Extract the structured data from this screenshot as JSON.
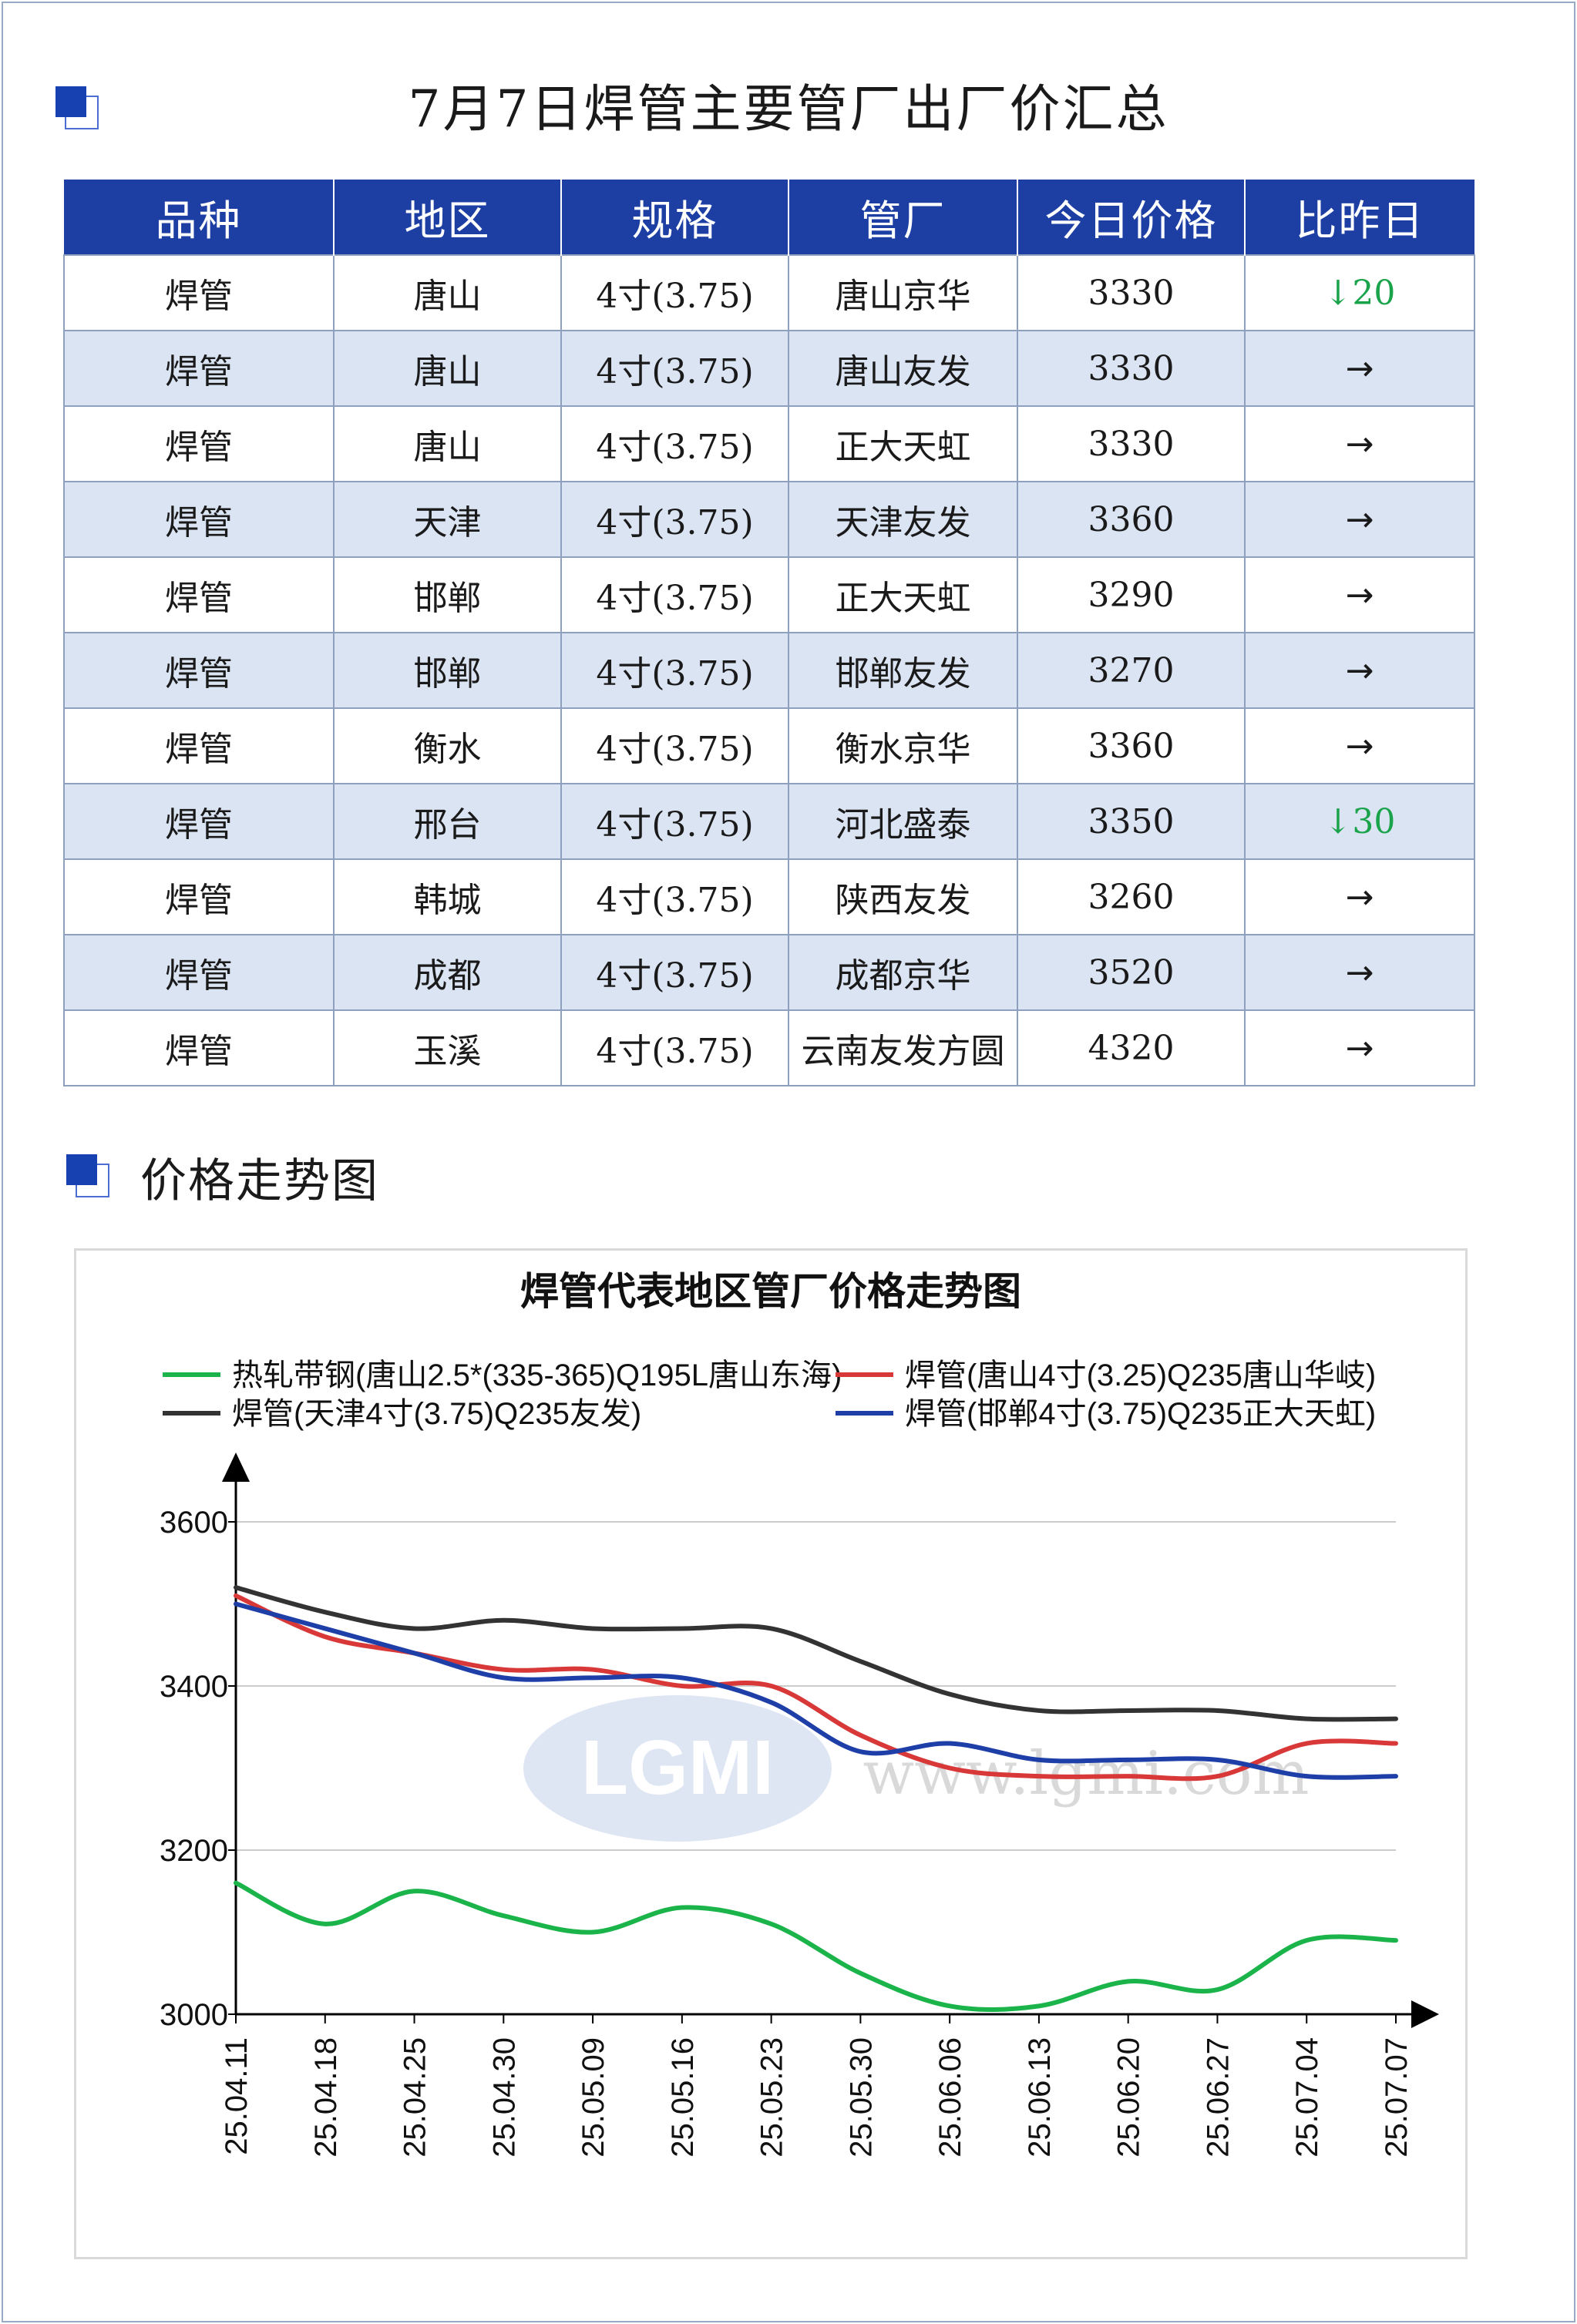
{
  "header": {
    "title": "7月7日焊管主要管厂出厂价汇总"
  },
  "table": {
    "columns": [
      "品种",
      "地区",
      "规格",
      "管厂",
      "今日价格",
      "比昨日"
    ],
    "rows": [
      {
        "variety": "焊管",
        "region": "唐山",
        "spec": "4寸(3.75)",
        "mill": "唐山京华",
        "price": "3330",
        "change": "↓20",
        "trend": "down"
      },
      {
        "variety": "焊管",
        "region": "唐山",
        "spec": "4寸(3.75)",
        "mill": "唐山友发",
        "price": "3330",
        "change": "→",
        "trend": "flat"
      },
      {
        "variety": "焊管",
        "region": "唐山",
        "spec": "4寸(3.75)",
        "mill": "正大天虹",
        "price": "3330",
        "change": "→",
        "trend": "flat"
      },
      {
        "variety": "焊管",
        "region": "天津",
        "spec": "4寸(3.75)",
        "mill": "天津友发",
        "price": "3360",
        "change": "→",
        "trend": "flat"
      },
      {
        "variety": "焊管",
        "region": "邯郸",
        "spec": "4寸(3.75)",
        "mill": "正大天虹",
        "price": "3290",
        "change": "→",
        "trend": "flat"
      },
      {
        "variety": "焊管",
        "region": "邯郸",
        "spec": "4寸(3.75)",
        "mill": "邯郸友发",
        "price": "3270",
        "change": "→",
        "trend": "flat"
      },
      {
        "variety": "焊管",
        "region": "衡水",
        "spec": "4寸(3.75)",
        "mill": "衡水京华",
        "price": "3360",
        "change": "→",
        "trend": "flat"
      },
      {
        "variety": "焊管",
        "region": "邢台",
        "spec": "4寸(3.75)",
        "mill": "河北盛泰",
        "price": "3350",
        "change": "↓30",
        "trend": "down"
      },
      {
        "variety": "焊管",
        "region": "韩城",
        "spec": "4寸(3.75)",
        "mill": "陕西友发",
        "price": "3260",
        "change": "→",
        "trend": "flat"
      },
      {
        "variety": "焊管",
        "region": "成都",
        "spec": "4寸(3.75)",
        "mill": "成都京华",
        "price": "3520",
        "change": "→",
        "trend": "flat"
      },
      {
        "variety": "焊管",
        "region": "玉溪",
        "spec": "4寸(3.75)",
        "mill": "云南友发方圆",
        "price": "4320",
        "change": "→",
        "trend": "flat"
      }
    ]
  },
  "section": {
    "title": "价格走势图"
  },
  "watermark": {
    "logo": "LGMI",
    "url": "www.lgmi.com"
  },
  "chart_data": {
    "type": "line",
    "title": "焊管代表地区管厂价格走势图",
    "xlabel": "",
    "ylabel": "",
    "ylim": [
      3000,
      3600
    ],
    "yticks": [
      3000,
      3200,
      3400,
      3600
    ],
    "grid": true,
    "legend_position": "top",
    "x": [
      "25.04.11",
      "25.04.18",
      "25.04.25",
      "25.04.30",
      "25.05.09",
      "25.05.16",
      "25.05.23",
      "25.05.30",
      "25.06.06",
      "25.06.13",
      "25.06.20",
      "25.06.27",
      "25.07.04",
      "25.07.07"
    ],
    "series": [
      {
        "name": "热轧带钢(唐山2.5*(335-365)Q195L唐山东海)",
        "color": "#1ab44a",
        "values": [
          3160,
          3110,
          3150,
          3120,
          3100,
          3130,
          3110,
          3050,
          3010,
          3010,
          3040,
          3030,
          3090,
          3090
        ]
      },
      {
        "name": "焊管(唐山4寸(3.25)Q235唐山华岐)",
        "color": "#d83838",
        "values": [
          3510,
          3460,
          3440,
          3420,
          3420,
          3400,
          3400,
          3340,
          3300,
          3290,
          3290,
          3290,
          3330,
          3330
        ]
      },
      {
        "name": "焊管(天津4寸(3.75)Q235友发)",
        "color": "#333333",
        "values": [
          3520,
          3490,
          3470,
          3480,
          3470,
          3470,
          3470,
          3430,
          3390,
          3370,
          3370,
          3370,
          3360,
          3360
        ]
      },
      {
        "name": "焊管(邯郸4寸(3.75)Q235正大天虹)",
        "color": "#1f3fa8",
        "values": [
          3500,
          3470,
          3440,
          3410,
          3410,
          3410,
          3380,
          3320,
          3330,
          3310,
          3310,
          3310,
          3290,
          3290
        ]
      }
    ]
  }
}
